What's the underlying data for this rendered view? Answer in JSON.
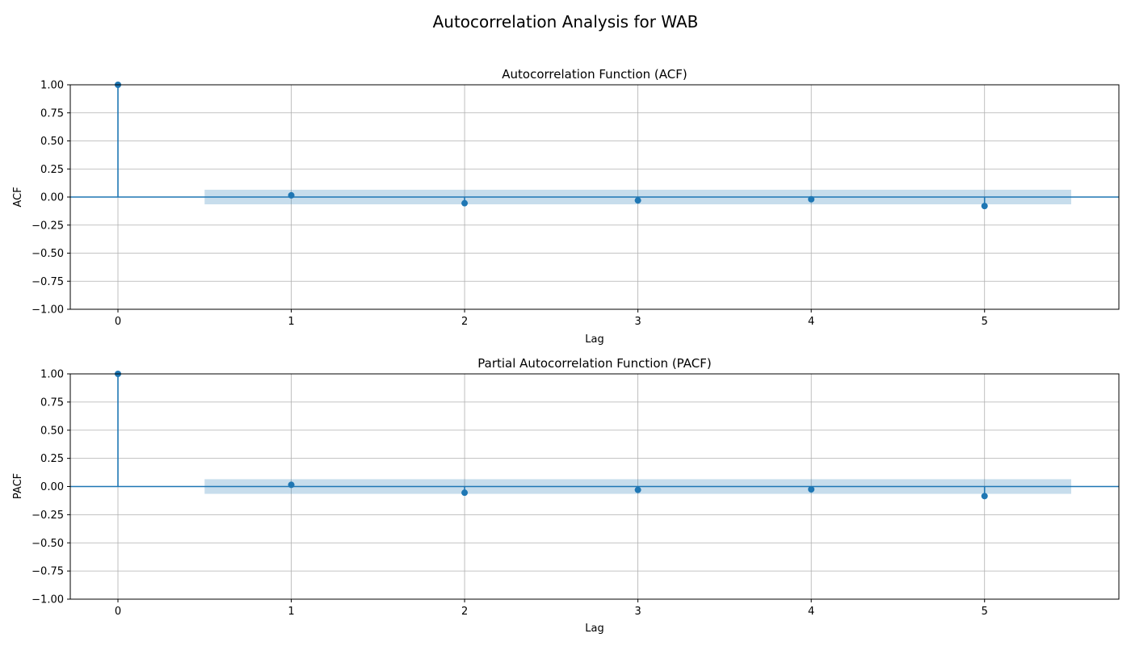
{
  "figure_title": "Autocorrelation Analysis for WAB",
  "colors": {
    "series": "#1f77b4",
    "band": "#1f77b4",
    "grid": "#b0b0b0",
    "axes": "#000000"
  },
  "chart_data": [
    {
      "type": "stem",
      "title": "Autocorrelation Function (ACF)",
      "xlabel": "Lag",
      "ylabel": "ACF",
      "x": [
        0,
        1,
        2,
        3,
        4,
        5
      ],
      "values": [
        1.0,
        0.015,
        -0.055,
        -0.03,
        -0.02,
        -0.08
      ],
      "confidence_band": {
        "x_range": [
          0.5,
          5.5
        ],
        "lower": -0.065,
        "upper": 0.065
      },
      "xlim": [
        -0.275,
        5.775
      ],
      "ylim": [
        -1.0,
        1.0
      ],
      "xticks": [
        0,
        1,
        2,
        3,
        4,
        5
      ],
      "xtick_labels": [
        "0",
        "1",
        "2",
        "3",
        "4",
        "5"
      ],
      "yticks": [
        -1.0,
        -0.75,
        -0.5,
        -0.25,
        0.0,
        0.25,
        0.5,
        0.75,
        1.0
      ],
      "ytick_labels": [
        "−1.00",
        "−0.75",
        "−0.50",
        "−0.25",
        "0.00",
        "0.25",
        "0.50",
        "0.75",
        "1.00"
      ],
      "grid": true
    },
    {
      "type": "stem",
      "title": "Partial Autocorrelation Function (PACF)",
      "xlabel": "Lag",
      "ylabel": "PACF",
      "x": [
        0,
        1,
        2,
        3,
        4,
        5
      ],
      "values": [
        1.0,
        0.015,
        -0.055,
        -0.03,
        -0.025,
        -0.085
      ],
      "confidence_band": {
        "x_range": [
          0.5,
          5.5
        ],
        "lower": -0.065,
        "upper": 0.065
      },
      "xlim": [
        -0.275,
        5.775
      ],
      "ylim": [
        -1.0,
        1.0
      ],
      "xticks": [
        0,
        1,
        2,
        3,
        4,
        5
      ],
      "xtick_labels": [
        "0",
        "1",
        "2",
        "3",
        "4",
        "5"
      ],
      "yticks": [
        -1.0,
        -0.75,
        -0.5,
        -0.25,
        0.0,
        0.25,
        0.5,
        0.75,
        1.0
      ],
      "ytick_labels": [
        "−1.00",
        "−0.75",
        "−0.50",
        "−0.25",
        "0.00",
        "0.25",
        "0.50",
        "0.75",
        "1.00"
      ],
      "grid": true
    }
  ]
}
